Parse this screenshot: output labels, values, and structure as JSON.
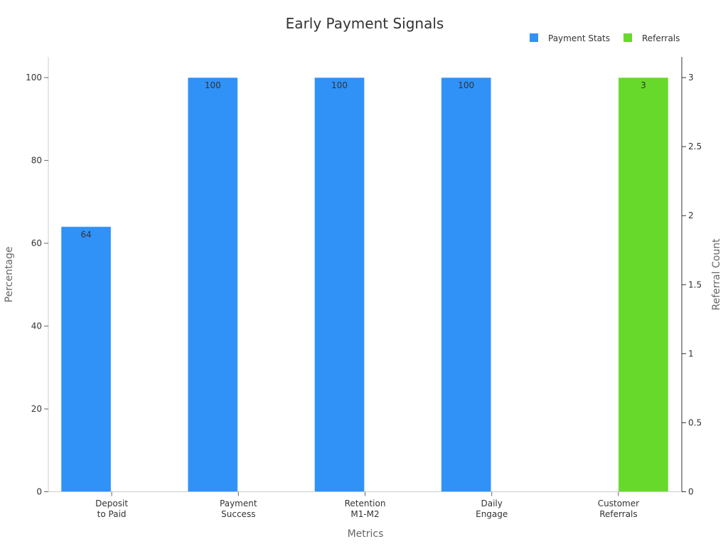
{
  "chart_data": {
    "type": "bar",
    "title": "Early Payment Signals",
    "xlabel": "Metrics",
    "ylabel": "Percentage",
    "y2label": "Referral Count",
    "categories": [
      [
        "Deposit",
        "to Paid"
      ],
      [
        "Payment",
        "Success"
      ],
      [
        "Retention",
        "M1-M2"
      ],
      [
        "Daily",
        "Engage"
      ],
      [
        "Customer",
        "Referrals"
      ]
    ],
    "series": [
      {
        "name": "Payment Stats",
        "axis": "left",
        "color": "#3091F7",
        "values": [
          64,
          100,
          100,
          100,
          null
        ]
      },
      {
        "name": "Referrals",
        "axis": "right",
        "color": "#66D92B",
        "values": [
          null,
          null,
          null,
          null,
          3
        ]
      }
    ],
    "ylim": [
      0,
      105
    ],
    "y2lim": [
      0,
      3.15
    ],
    "yticks": [
      0,
      20,
      40,
      60,
      80,
      100
    ],
    "y2ticks": [
      "0",
      "0.5",
      "1",
      "1.5",
      "2",
      "2.5",
      "3"
    ],
    "legend_position": "top-right",
    "grid": false
  }
}
